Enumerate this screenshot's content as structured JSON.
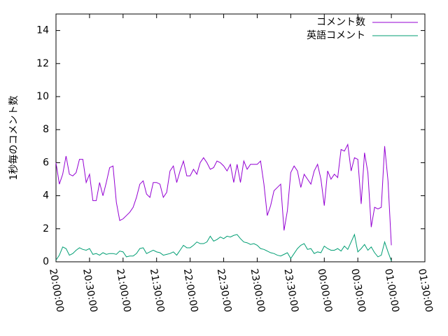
{
  "chart_data": {
    "type": "line",
    "ylabel": "1秒毎のコメント数",
    "x": [
      "20:00:00",
      "20:03:00",
      "20:06:00",
      "20:09:00",
      "20:12:00",
      "20:15:00",
      "20:18:00",
      "20:21:00",
      "20:24:00",
      "20:27:00",
      "20:30:00",
      "20:33:00",
      "20:36:00",
      "20:39:00",
      "20:42:00",
      "20:45:00",
      "20:48:00",
      "20:51:00",
      "20:54:00",
      "20:57:00",
      "21:00:00",
      "21:03:00",
      "21:06:00",
      "21:09:00",
      "21:12:00",
      "21:15:00",
      "21:18:00",
      "21:21:00",
      "21:24:00",
      "21:27:00",
      "21:30:00",
      "21:33:00",
      "21:36:00",
      "21:39:00",
      "21:42:00",
      "21:45:00",
      "21:48:00",
      "21:51:00",
      "21:54:00",
      "21:57:00",
      "22:00:00",
      "22:03:00",
      "22:06:00",
      "22:09:00",
      "22:12:00",
      "22:15:00",
      "22:18:00",
      "22:21:00",
      "22:24:00",
      "22:27:00",
      "22:30:00",
      "22:33:00",
      "22:36:00",
      "22:39:00",
      "22:42:00",
      "22:45:00",
      "22:48:00",
      "22:51:00",
      "22:54:00",
      "22:57:00",
      "23:00:00",
      "23:03:00",
      "23:06:00",
      "23:09:00",
      "23:12:00",
      "23:15:00",
      "23:18:00",
      "23:21:00",
      "23:24:00",
      "23:27:00",
      "23:30:00",
      "23:33:00",
      "23:36:00",
      "23:39:00",
      "23:42:00",
      "23:45:00",
      "23:48:00",
      "23:51:00",
      "23:54:00",
      "23:57:00",
      "00:00:00",
      "00:03:00",
      "00:06:00",
      "00:09:00",
      "00:12:00",
      "00:15:00",
      "00:18:00",
      "00:21:00",
      "00:24:00",
      "00:27:00",
      "00:30:00",
      "00:33:00",
      "00:36:00",
      "00:39:00",
      "00:42:00",
      "00:45:00",
      "00:48:00",
      "00:51:00",
      "00:54:00",
      "00:57:00",
      "01:00:00"
    ],
    "series": [
      {
        "name": "コメント数",
        "color": "#9400d3",
        "values": [
          6.0,
          4.7,
          5.3,
          6.4,
          5.3,
          5.2,
          5.4,
          6.2,
          6.2,
          4.8,
          5.3,
          3.7,
          3.7,
          4.8,
          4.0,
          4.8,
          5.7,
          5.8,
          3.6,
          2.5,
          2.6,
          2.8,
          3.0,
          3.3,
          3.9,
          4.7,
          4.9,
          4.1,
          3.9,
          4.8,
          4.8,
          4.7,
          3.9,
          4.2,
          5.5,
          5.8,
          4.8,
          5.5,
          6.1,
          5.2,
          5.2,
          5.6,
          5.3,
          6.0,
          6.3,
          6.0,
          5.6,
          5.7,
          6.1,
          6.0,
          5.8,
          5.5,
          5.9,
          4.8,
          5.9,
          4.8,
          6.1,
          5.6,
          5.9,
          5.9,
          5.9,
          6.1,
          4.7,
          2.8,
          3.4,
          4.3,
          4.5,
          4.7,
          1.9,
          3.1,
          5.4,
          5.8,
          5.5,
          4.5,
          5.3,
          5.0,
          4.7,
          5.5,
          5.9,
          5.0,
          3.4,
          5.5,
          5.0,
          5.3,
          5.1,
          6.8,
          6.7,
          7.1,
          5.5,
          6.3,
          6.2,
          3.5,
          6.6,
          5.4,
          2.1,
          3.3,
          3.2,
          3.3,
          7.0,
          4.9,
          1.0
        ]
      },
      {
        "name": "英語コメント",
        "color": "#009e73",
        "values": [
          0.1,
          0.4,
          0.9,
          0.8,
          0.4,
          0.5,
          0.7,
          0.85,
          0.75,
          0.7,
          0.8,
          0.45,
          0.5,
          0.4,
          0.55,
          0.45,
          0.5,
          0.5,
          0.45,
          0.65,
          0.6,
          0.3,
          0.35,
          0.35,
          0.5,
          0.8,
          0.85,
          0.5,
          0.6,
          0.7,
          0.6,
          0.55,
          0.4,
          0.45,
          0.5,
          0.6,
          0.4,
          0.7,
          1.0,
          0.85,
          0.85,
          1.0,
          1.2,
          1.1,
          1.1,
          1.2,
          1.55,
          1.25,
          1.35,
          1.5,
          1.4,
          1.55,
          1.5,
          1.6,
          1.65,
          1.4,
          1.2,
          1.15,
          1.05,
          1.1,
          1.0,
          0.8,
          0.75,
          0.65,
          0.55,
          0.5,
          0.4,
          0.35,
          0.45,
          0.55,
          0.2,
          0.5,
          0.8,
          1.0,
          1.1,
          0.75,
          0.8,
          0.5,
          0.6,
          0.55,
          0.95,
          0.8,
          0.7,
          0.7,
          0.8,
          0.65,
          0.95,
          0.75,
          1.2,
          1.65,
          0.6,
          0.8,
          1.05,
          0.7,
          0.9,
          0.55,
          0.3,
          0.4,
          1.2,
          0.6,
          0.05
        ]
      }
    ],
    "xlim": [
      "20:00:00",
      "01:30:00"
    ],
    "xticks": [
      "20:00:00",
      "20:30:00",
      "21:00:00",
      "21:30:00",
      "22:00:00",
      "22:30:00",
      "23:00:00",
      "23:30:00",
      "00:00:00",
      "00:30:00",
      "01:00:00",
      "01:30:00"
    ],
    "ylim": [
      0,
      15
    ],
    "yticks": [
      0,
      2,
      4,
      6,
      8,
      10,
      12,
      14
    ],
    "legend": "upper right"
  }
}
